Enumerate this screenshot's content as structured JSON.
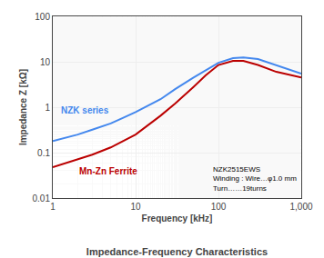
{
  "chart_data": {
    "type": "line",
    "title": "Impedance-Frequency Characteristics",
    "xlabel": "Frequency [kHz]",
    "ylabel": "Impedance Z [kΩ]",
    "log": true,
    "grid": true,
    "x": [
      1,
      2,
      3,
      5,
      7,
      10,
      20,
      30,
      50,
      70,
      100,
      150,
      200,
      300,
      500,
      700,
      1000
    ],
    "series": [
      {
        "name": "NZK series",
        "color": "#4488EE",
        "values": [
          0.18,
          0.25,
          0.32,
          0.44,
          0.58,
          0.78,
          1.5,
          2.5,
          4.5,
          6.5,
          9.5,
          12.0,
          12.5,
          11.5,
          8.5,
          7.0,
          5.5
        ]
      },
      {
        "name": "Mn-Zn Ferrite",
        "color": "#BB0000",
        "values": [
          0.048,
          0.07,
          0.09,
          0.13,
          0.18,
          0.25,
          0.65,
          1.2,
          2.8,
          5.0,
          8.5,
          10.5,
          10.5,
          8.5,
          6.0,
          5.2,
          4.5
        ]
      }
    ],
    "xlim": [
      1,
      1000
    ],
    "ylim": [
      0.01,
      100
    ],
    "xticks": [
      1,
      10,
      100,
      {
        "value": 1000,
        "label": "1,000"
      }
    ],
    "yticks": [
      0.01,
      0.1,
      1,
      10,
      100
    ],
    "annotations": [
      "NZK2515EWS",
      "Winding : Wire…φ1.0 mm",
      "Turn……19turns"
    ]
  }
}
